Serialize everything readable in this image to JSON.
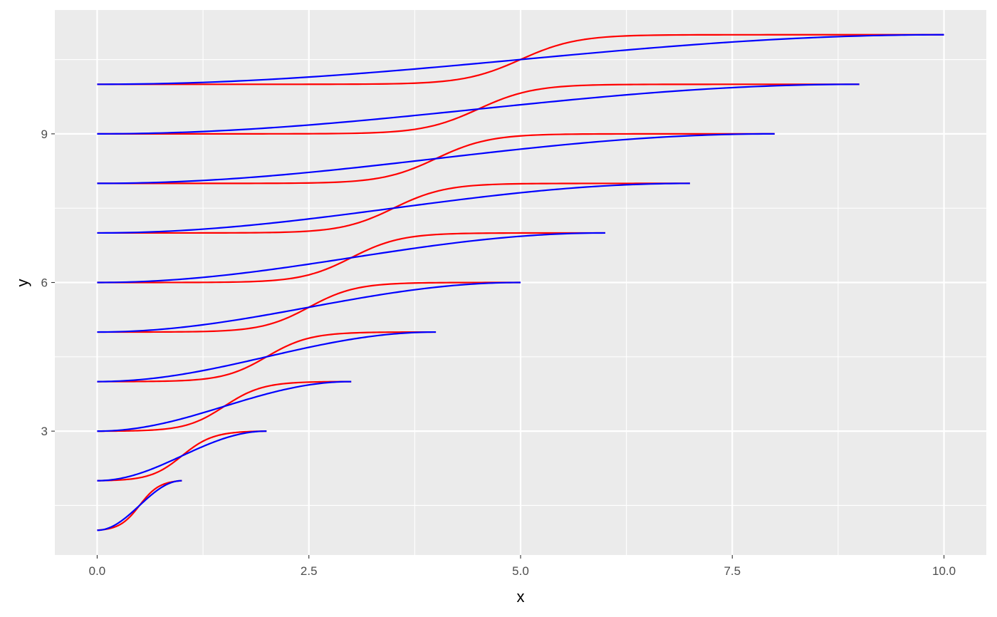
{
  "chart_data": {
    "type": "line",
    "xlabel": "x",
    "ylabel": "y",
    "xlim": [
      -0.5,
      10.5
    ],
    "ylim": [
      0.5,
      11.5
    ],
    "x_ticks": [
      0,
      2.5,
      5,
      7.5,
      10
    ],
    "x_tick_labels": [
      "0.0",
      "2.5",
      "5.0",
      "7.5",
      "10.0"
    ],
    "x_minor_ticks": [
      1.25,
      3.75,
      6.25,
      8.75
    ],
    "y_ticks": [
      3,
      6,
      9
    ],
    "y_tick_labels": [
      "3",
      "6",
      "9"
    ],
    "y_minor_ticks": [
      1.5,
      4.5,
      7.5,
      10.5
    ],
    "grid": true,
    "legend": "none",
    "colors": {
      "panel_background": "#EBEBEB",
      "grid": "#FFFFFF",
      "red_curves": "#FF0000",
      "blue_curves": "#0000FF"
    },
    "series": [
      {
        "color": "#FF0000",
        "curve": "steep sigmoid",
        "segments": [
          {
            "x": [
              0,
              1
            ],
            "y": [
              1,
              2
            ]
          },
          {
            "x": [
              0,
              2
            ],
            "y": [
              2,
              3
            ]
          },
          {
            "x": [
              0,
              3
            ],
            "y": [
              3,
              4
            ]
          },
          {
            "x": [
              0,
              4
            ],
            "y": [
              4,
              5
            ]
          },
          {
            "x": [
              0,
              5
            ],
            "y": [
              5,
              6
            ]
          },
          {
            "x": [
              0,
              6
            ],
            "y": [
              6,
              7
            ]
          },
          {
            "x": [
              0,
              7
            ],
            "y": [
              7,
              8
            ]
          },
          {
            "x": [
              0,
              8
            ],
            "y": [
              8,
              9
            ]
          },
          {
            "x": [
              0,
              9
            ],
            "y": [
              9,
              10
            ]
          },
          {
            "x": [
              0,
              10
            ],
            "y": [
              10,
              11
            ]
          }
        ]
      },
      {
        "color": "#0000FF",
        "curve": "gentle sigmoid",
        "segments": [
          {
            "x": [
              0,
              1
            ],
            "y": [
              1,
              2
            ]
          },
          {
            "x": [
              0,
              2
            ],
            "y": [
              2,
              3
            ]
          },
          {
            "x": [
              0,
              3
            ],
            "y": [
              3,
              4
            ]
          },
          {
            "x": [
              0,
              4
            ],
            "y": [
              4,
              5
            ]
          },
          {
            "x": [
              0,
              5
            ],
            "y": [
              5,
              6
            ]
          },
          {
            "x": [
              0,
              6
            ],
            "y": [
              6,
              7
            ]
          },
          {
            "x": [
              0,
              7
            ],
            "y": [
              7,
              8
            ]
          },
          {
            "x": [
              0,
              8
            ],
            "y": [
              8,
              9
            ]
          },
          {
            "x": [
              0,
              9
            ],
            "y": [
              9,
              10
            ]
          },
          {
            "x": [
              0,
              10
            ],
            "y": [
              10,
              11
            ]
          }
        ]
      }
    ]
  }
}
